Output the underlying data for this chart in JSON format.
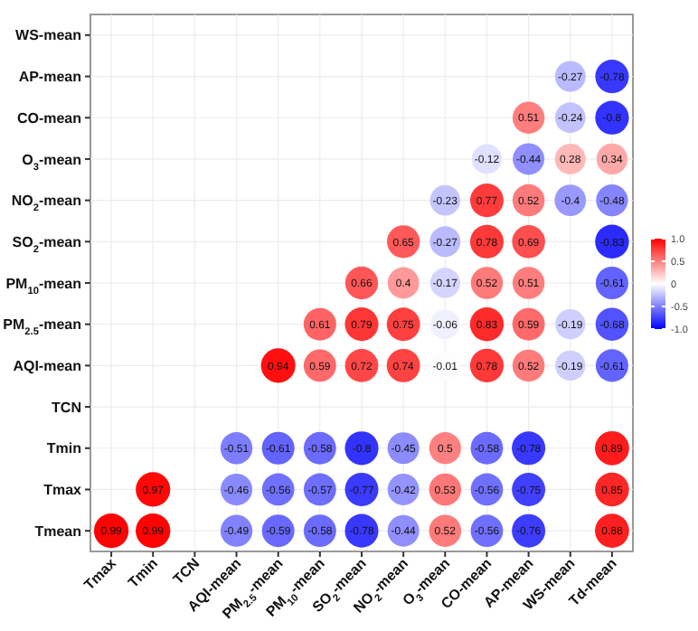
{
  "chart_data": {
    "type": "heatmap",
    "categories": [
      "Tmax",
      "Tmin",
      "TCN",
      "AQI-mean",
      "PM$_{2.5}$-mean",
      "PM$_{10}$-mean",
      "SO$_{2}$-mean",
      "NO$_{2}$-mean",
      "O$_{3}$-mean",
      "CO-mean",
      "AP-mean",
      "WS-mean",
      "Td-mean"
    ],
    "y_categories": [
      "WS-mean",
      "AP-mean",
      "CO-mean",
      "O$_{3}$-mean",
      "NO$_{2}$-mean",
      "SO$_{2}$-mean",
      "PM$_{10}$-mean",
      "PM$_{2.5}$-mean",
      "AQI-mean",
      "TCN",
      "Tmin",
      "Tmax",
      "Tmean"
    ],
    "cells": [
      [
        null,
        null,
        null,
        null,
        null,
        null,
        null,
        null,
        null,
        null,
        null,
        null,
        null
      ],
      [
        null,
        null,
        null,
        null,
        null,
        null,
        null,
        null,
        null,
        null,
        null,
        -0.27,
        -0.78
      ],
      [
        null,
        null,
        null,
        null,
        null,
        null,
        null,
        null,
        null,
        null,
        0.51,
        -0.24,
        -0.8
      ],
      [
        null,
        null,
        null,
        null,
        null,
        null,
        null,
        null,
        null,
        -0.12,
        -0.44,
        0.28,
        0.34
      ],
      [
        null,
        null,
        null,
        null,
        null,
        null,
        null,
        null,
        -0.23,
        0.77,
        0.52,
        -0.4,
        -0.48
      ],
      [
        null,
        null,
        null,
        null,
        null,
        null,
        null,
        0.65,
        -0.27,
        0.78,
        0.69,
        null,
        -0.83
      ],
      [
        null,
        null,
        null,
        null,
        null,
        null,
        0.66,
        0.4,
        -0.17,
        0.52,
        0.51,
        null,
        -0.61
      ],
      [
        null,
        null,
        null,
        null,
        null,
        0.61,
        0.79,
        0.75,
        -0.06,
        0.83,
        0.59,
        -0.19,
        -0.68
      ],
      [
        null,
        null,
        null,
        null,
        0.94,
        0.59,
        0.72,
        0.74,
        -0.01,
        0.78,
        0.52,
        -0.19,
        -0.61
      ],
      [
        null,
        null,
        null,
        null,
        null,
        null,
        null,
        null,
        null,
        null,
        null,
        null,
        null
      ],
      [
        null,
        null,
        null,
        -0.51,
        -0.61,
        -0.58,
        -0.8,
        -0.45,
        0.5,
        -0.58,
        -0.78,
        null,
        0.89
      ],
      [
        null,
        0.97,
        null,
        -0.46,
        -0.56,
        -0.57,
        -0.77,
        -0.42,
        0.53,
        -0.56,
        -0.75,
        null,
        0.85
      ],
      [
        0.99,
        0.99,
        null,
        -0.49,
        -0.59,
        -0.58,
        -0.78,
        -0.44,
        0.52,
        -0.56,
        -0.76,
        null,
        0.88
      ]
    ],
    "clim": [
      -1,
      1
    ],
    "cticks": [
      {
        "value": 1,
        "label": "1.0"
      },
      {
        "value": 0.5,
        "label": "0.5"
      },
      0,
      {
        "value": -0.5,
        "label": "-0.5"
      },
      {
        "value": -1,
        "label": "-1.0"
      }
    ],
    "data_labels": true,
    "grid": true
  }
}
